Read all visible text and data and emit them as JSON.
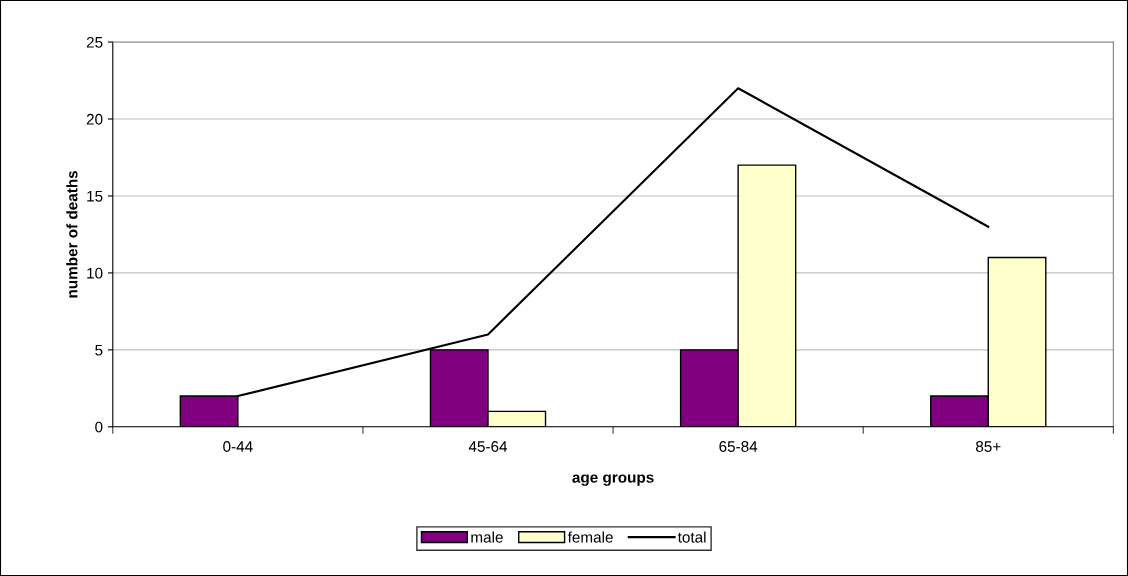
{
  "chart_data": {
    "type": "bar",
    "xlabel": "age groups",
    "ylabel": "number of deaths",
    "categories": [
      "0-44",
      "45-64",
      "65-84",
      "85+"
    ],
    "series": [
      {
        "name": "male",
        "color": "#800080",
        "values": [
          2,
          5,
          5,
          2
        ]
      },
      {
        "name": "female",
        "color": "#ffffcc",
        "values": [
          null,
          1,
          17,
          11
        ]
      },
      {
        "name": "total",
        "type": "line",
        "color": "#000000",
        "values": [
          2,
          6,
          22,
          13
        ]
      }
    ],
    "ylim": [
      0,
      25
    ],
    "yticks": [
      0,
      5,
      10,
      15,
      20,
      25
    ],
    "grid": "y",
    "legend": "bottom"
  }
}
